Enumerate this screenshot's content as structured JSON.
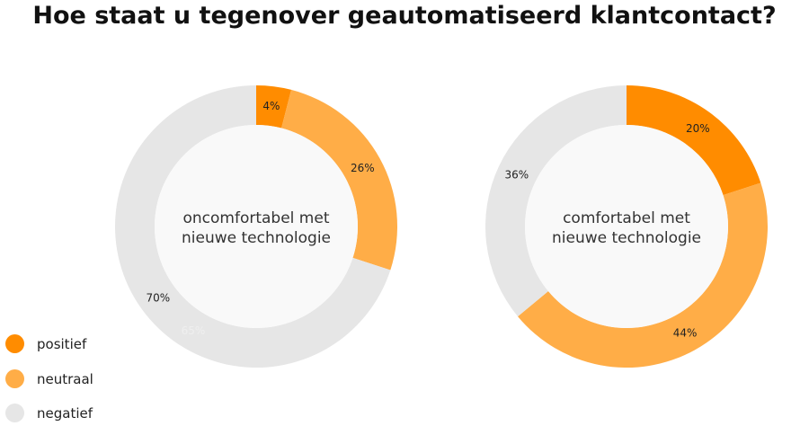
{
  "chart_data": {
    "type": "donut",
    "title": "Hoe staat u tegenover geautomatiseerd klantcontact?",
    "legend": {
      "placement": "bottom-left",
      "entries": [
        "positief",
        "neutraal",
        "negatief"
      ]
    },
    "colors": {
      "positief": "#FF8C00",
      "neutraal": "#FFAD47",
      "negatief": "#E6E6E6"
    },
    "charts": [
      {
        "center_label": [
          "oncomfortabel met",
          "nieuwe technologie"
        ],
        "values": [
          4,
          26,
          70
        ],
        "labels": [
          "4%",
          "26%",
          "70%"
        ],
        "ghost_label": "65%"
      },
      {
        "center_label": [
          "comfortabel met",
          "nieuwe technologie"
        ],
        "values": [
          20,
          44,
          36
        ],
        "labels": [
          "20%",
          "44%",
          "36%"
        ]
      }
    ]
  }
}
